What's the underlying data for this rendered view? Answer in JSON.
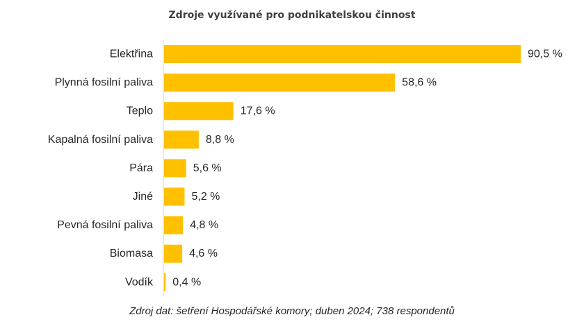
{
  "chart_data": {
    "type": "bar",
    "orientation": "horizontal",
    "title": "Zdroje využívané pro podnikatelskou činnost",
    "categories": [
      "Elektřina",
      "Plynná fosilní paliva",
      "Teplo",
      "Kapalná fosilní paliva",
      "Pára",
      "Jiné",
      "Pevná fosilní paliva",
      "Biomasa",
      "Vodík"
    ],
    "values": [
      90.5,
      58.6,
      17.6,
      8.8,
      5.6,
      5.2,
      4.8,
      4.6,
      0.4
    ],
    "value_labels": [
      "90,5 %",
      "58,6 %",
      "17,6 %",
      "8,8 %",
      "5,6 %",
      "5,2 %",
      "4,8 %",
      "4,6 %",
      "0,4 %"
    ],
    "xlim": [
      0,
      90.5
    ],
    "grid": false,
    "bar_color": "#FFC000"
  },
  "source_note": "Zdroj dat: šetření Hospodářské komory; duben 2024; 738 respondentů"
}
